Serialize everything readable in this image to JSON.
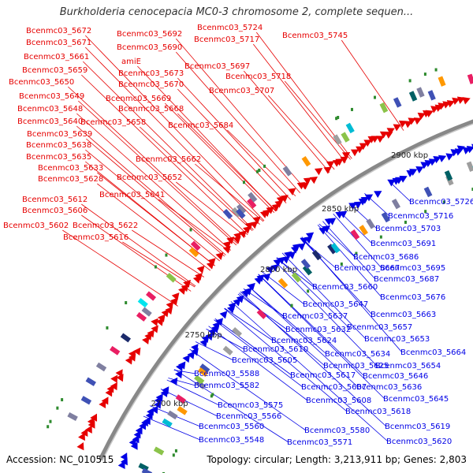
{
  "title": "Burkholderia cenocepacia MC0-3 chromosome 2, complete sequen...",
  "footer": {
    "accession": "Accession: NC_010515",
    "topology": "Topology: circular; Length: 3,213,911 bp; Genes: 2,803"
  },
  "colors": {
    "forward_strand": "#e60000",
    "reverse_strand": "#0000e6",
    "backbone": "#999999",
    "gc_marker": "#2e8b2e"
  },
  "ticks": [
    "2700 kbp",
    "2750 kbp",
    "2800 kbp",
    "2850 kbp",
    "2900 kbp"
  ],
  "forward_labels": [
    "Bcenmc03_5724",
    "Bcenmc03_5745",
    "Bcenmc03_5672",
    "Bcenmc03_5692",
    "Bcenmc03_5717",
    "Bcenmc03_5671",
    "Bcenmc03_5690",
    "Bcenmc03_5661",
    "amiE",
    "Bcenmc03_5697",
    "Bcenmc03_5659",
    "Bcenmc03_5673",
    "Bcenmc03_5718",
    "Bcenmc03_5650",
    "Bcenmc03_5670",
    "Bcenmc03_5707",
    "Bcenmc03_5649",
    "Bcenmc03_5669",
    "Bcenmc03_5648",
    "Bcenmc03_5668",
    "Bcenmc03_5640",
    "Bcenmc03_5658",
    "Bcenmc03_5684",
    "Bcenmc03_5639",
    "Bcenmc03_5638",
    "Bcenmc03_5662",
    "Bcenmc03_5635",
    "Bcenmc03_5633",
    "Bcenmc03_5652",
    "Bcenmc03_5628",
    "Bcenmc03_5641",
    "Bcenmc03_5612",
    "Bcenmc03_5606",
    "Bcenmc03_5602",
    "Bcenmc03_5622",
    "Bcenmc03_5616"
  ],
  "reverse_labels": [
    "Bcenmc03_5726",
    "Bcenmc03_5716",
    "Bcenmc03_5703",
    "Bcenmc03_5691",
    "Bcenmc03_5686",
    "Bcenmc03_5667",
    "Bcenmc03_5695",
    "Bcenmc03_5687",
    "Bcenmc03_5660",
    "Bcenmc03_5676",
    "Bcenmc03_5647",
    "Bcenmc03_5663",
    "Bcenmc03_5637",
    "Bcenmc03_5657",
    "Bcenmc03_5632",
    "Bcenmc03_5653",
    "Bcenmc03_5624",
    "Bcenmc03_5634",
    "Bcenmc03_5664",
    "Bcenmc03_5610",
    "Bcenmc03_5625",
    "Bcenmc03_5654",
    "Bcenmc03_5605",
    "Bcenmc03_5617",
    "Bcenmc03_5646",
    "Bcenmc03_5588",
    "Bcenmc03_5607",
    "Bcenmc03_5636",
    "Bcenmc03_5582",
    "Bcenmc03_5645",
    "Bcenmc03_5608",
    "Bcenmc03_5575",
    "Bcenmc03_5618",
    "Bcenmc03_5566",
    "Bcenmc03_5560",
    "Bcenmc03_5619",
    "Bcenmc03_5580",
    "Bcenmc03_5620",
    "Bcenmc03_5548",
    "Bcenmc03_5571"
  ]
}
